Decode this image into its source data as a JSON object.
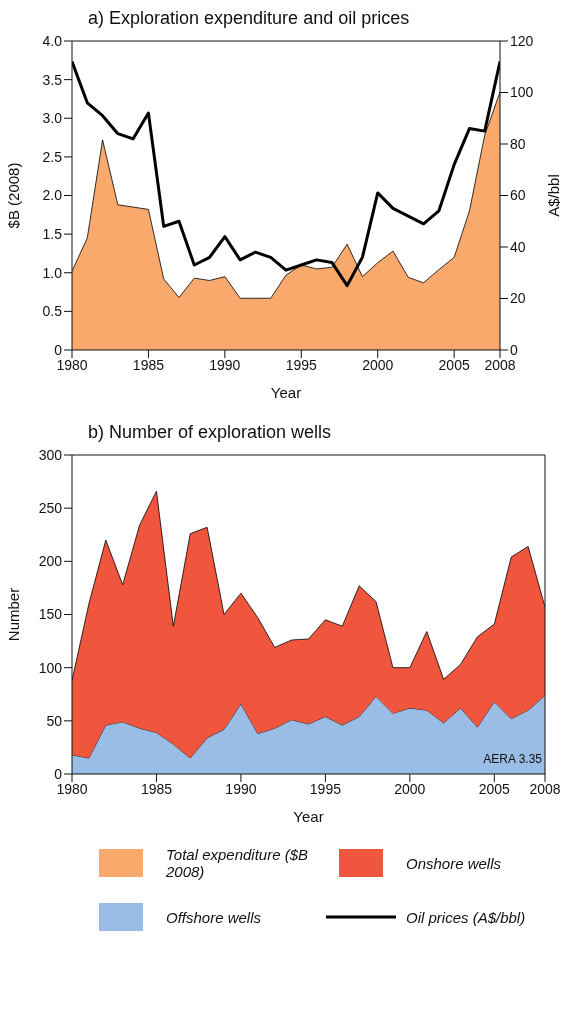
{
  "chart_data": [
    {
      "type": "area",
      "title": "a) Exploration expenditure and oil prices",
      "xlabel": "Year",
      "ylabel": "$B (2008)",
      "y2label": "A$/bbl",
      "x": [
        1980,
        1981,
        1982,
        1983,
        1984,
        1985,
        1986,
        1987,
        1988,
        1989,
        1990,
        1991,
        1992,
        1993,
        1994,
        1995,
        1996,
        1997,
        1998,
        1999,
        2000,
        2001,
        2002,
        2003,
        2004,
        2005,
        2006,
        2007,
        2008
      ],
      "series": [
        {
          "name": "Total expenditure ($B 2008)",
          "color": "#f9a96b",
          "values": [
            1.02,
            1.45,
            2.72,
            1.88,
            1.85,
            1.82,
            0.92,
            0.68,
            0.93,
            0.9,
            0.95,
            0.67,
            0.67,
            0.67,
            0.97,
            1.1,
            1.05,
            1.07,
            1.37,
            0.95,
            1.13,
            1.28,
            0.94,
            0.87,
            1.04,
            1.2,
            1.8,
            2.78,
            3.34
          ]
        },
        {
          "name": "Oil prices (A$/bbl)",
          "type": "line",
          "axis": "y2",
          "color": "#000000",
          "values": [
            112,
            96,
            91,
            84,
            82,
            92,
            48,
            50,
            33,
            36,
            44,
            35,
            38,
            36,
            31,
            33,
            35,
            34,
            25,
            36,
            61,
            55,
            52,
            49,
            54,
            72,
            86,
            85,
            112
          ]
        }
      ],
      "xlim": [
        1980,
        2008
      ],
      "xticks": [
        1980,
        1985,
        1990,
        1995,
        2000,
        2005,
        2008
      ],
      "ylim": [
        0,
        4
      ],
      "yticks": [
        0,
        0.5,
        {
          "value": 1,
          "label": "1.0"
        },
        1.5,
        {
          "value": 2,
          "label": "2.0"
        },
        2.5,
        {
          "value": 3,
          "label": "3.0"
        },
        3.5,
        {
          "value": 4,
          "label": "4.0"
        }
      ],
      "y2lim": [
        0,
        120
      ],
      "y2ticks": [
        0,
        20,
        40,
        60,
        80,
        100,
        120
      ],
      "legend": "bottom"
    },
    {
      "type": "area",
      "title": "b) Number of exploration wells",
      "xlabel": "Year",
      "ylabel": "Number",
      "stacked": true,
      "x": [
        1980,
        1981,
        1982,
        1983,
        1984,
        1985,
        1986,
        1987,
        1988,
        1989,
        1990,
        1991,
        1992,
        1993,
        1994,
        1995,
        1996,
        1997,
        1998,
        1999,
        2000,
        2001,
        2002,
        2003,
        2004,
        2005,
        2006,
        2007,
        2008
      ],
      "series": [
        {
          "name": "Offshore wells",
          "color": "#99bde4",
          "values": [
            18,
            15,
            46,
            49,
            43,
            39,
            28,
            15,
            34,
            42,
            66,
            38,
            43,
            51,
            47,
            54,
            46,
            54,
            73,
            57,
            62,
            60,
            48,
            62,
            44,
            68,
            52,
            60,
            74
          ]
        },
        {
          "name": "Onshore wells",
          "color": "#f0563d",
          "values": [
            70,
            145,
            174,
            129,
            191,
            227,
            111,
            211,
            198,
            108,
            104,
            109,
            76,
            75,
            80,
            91,
            93,
            123,
            89,
            43,
            38,
            74,
            41,
            41,
            85,
            73,
            152,
            154,
            83
          ]
        }
      ],
      "xlim": [
        1980,
        2008
      ],
      "xticks": [
        1980,
        1985,
        1990,
        1995,
        2000,
        2005,
        2008
      ],
      "ylim": [
        0,
        300
      ],
      "yticks": [
        0,
        50,
        100,
        150,
        200,
        250,
        300
      ],
      "annotations": [
        "AERA 3.35"
      ],
      "legend": "bottom"
    }
  ]
}
